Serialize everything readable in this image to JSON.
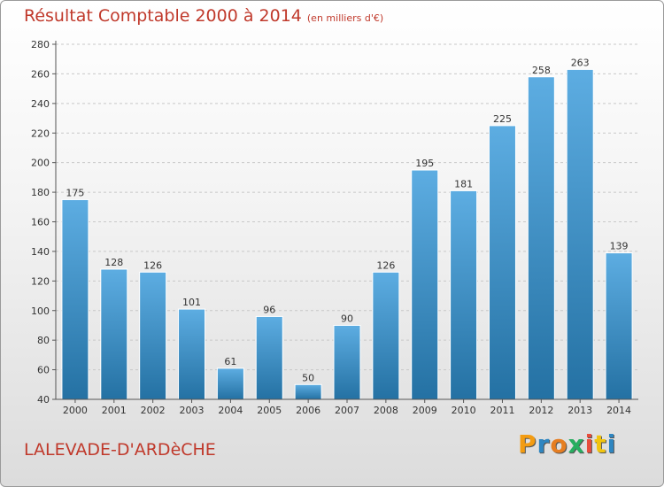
{
  "title": "Résultat Comptable 2000 à 2014",
  "subtitle": "(en milliers d'€)",
  "city": "LALEVADE-D'ARDèCHE",
  "logo": {
    "letters": [
      "P",
      "r",
      "o",
      "x",
      "i",
      "t",
      "i"
    ],
    "colors": [
      "#f39c12",
      "#2e86c1",
      "#e67e22",
      "#27ae60",
      "#e74c3c",
      "#f1c40f",
      "#2e86c1"
    ]
  },
  "colors": {
    "bar_top": "#5dade2",
    "bar_bottom": "#2471a3",
    "text_accent": "#c0392b"
  },
  "chart_data": {
    "type": "bar",
    "categories": [
      "2000",
      "2001",
      "2002",
      "2003",
      "2004",
      "2005",
      "2006",
      "2007",
      "2008",
      "2009",
      "2010",
      "2011",
      "2012",
      "2013",
      "2014"
    ],
    "values": [
      175,
      128,
      126,
      101,
      61,
      96,
      50,
      90,
      126,
      195,
      181,
      225,
      258,
      263,
      139
    ],
    "ylim": [
      40,
      280
    ],
    "yticks": [
      40,
      60,
      80,
      100,
      120,
      140,
      160,
      180,
      200,
      220,
      240,
      260,
      280
    ],
    "grid": true,
    "xlabel": "",
    "ylabel": ""
  }
}
